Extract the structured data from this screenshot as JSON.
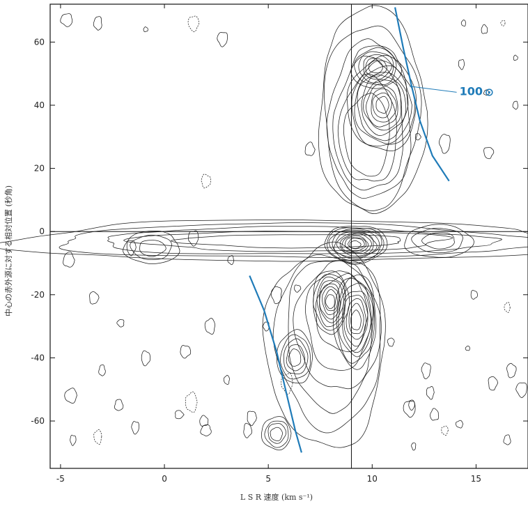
{
  "chart_data": {
    "type": "contour",
    "xlabel": "L S R 速度 (km s⁻¹)",
    "ylabel": "中心の赤外源に対する相対位置 (秒角)",
    "xlim": [
      -5.5,
      17.5
    ],
    "ylim": [
      -75,
      72
    ],
    "x_ticks": [
      -5,
      0,
      5,
      10,
      15
    ],
    "y_ticks": [
      60,
      40,
      20,
      0,
      -20,
      -40,
      -60
    ],
    "reference_lines": {
      "x": 9.0,
      "y": 0
    },
    "grid": false,
    "accent_color": "#1f7bb8",
    "annotation": {
      "text": "100",
      "symbol": "⊙",
      "x": 14.2,
      "y": 45,
      "pointer_to": [
        11.8,
        46
      ]
    },
    "rotation_curves": [
      {
        "label": "upper",
        "points": [
          [
            11.1,
            71
          ],
          [
            11.5,
            58
          ],
          [
            11.9,
            46
          ],
          [
            12.3,
            35
          ],
          [
            12.9,
            24
          ],
          [
            13.7,
            16
          ]
        ]
      },
      {
        "label": "lower",
        "points": [
          [
            4.1,
            -14
          ],
          [
            4.8,
            -25
          ],
          [
            5.4,
            -38
          ],
          [
            5.9,
            -52
          ],
          [
            6.3,
            -63
          ],
          [
            6.6,
            -70
          ]
        ]
      }
    ],
    "peaks": [
      {
        "x": 9.2,
        "y": -4,
        "levels": 11,
        "rx": 0.9,
        "ry": 3.5
      },
      {
        "x": 10.5,
        "y": 40,
        "levels": 10,
        "rx": 1.0,
        "ry": 9
      },
      {
        "x": 10.2,
        "y": 52,
        "levels": 6,
        "rx": 0.7,
        "ry": 4
      },
      {
        "x": 8.0,
        "y": -22,
        "levels": 8,
        "rx": 0.5,
        "ry": 6
      },
      {
        "x": 9.2,
        "y": -28,
        "levels": 8,
        "rx": 0.6,
        "ry": 9
      },
      {
        "x": 6.3,
        "y": -40,
        "levels": 5,
        "rx": 0.5,
        "ry": 5
      },
      {
        "x": 5.4,
        "y": -64,
        "levels": 4,
        "rx": 0.4,
        "ry": 3
      },
      {
        "x": -0.6,
        "y": -5,
        "levels": 3,
        "rx": 0.8,
        "ry": 3
      },
      {
        "x": 13.2,
        "y": -3,
        "levels": 3,
        "rx": 1.0,
        "ry": 3
      }
    ]
  }
}
